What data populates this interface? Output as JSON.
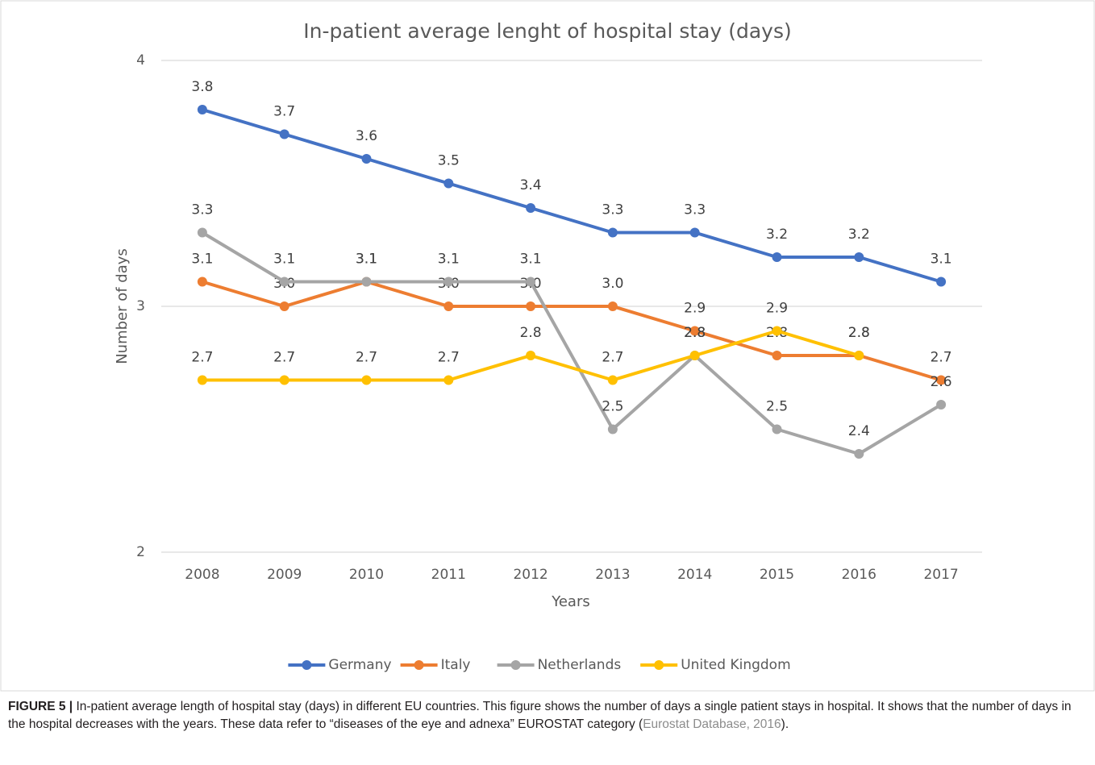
{
  "chart_data": {
    "type": "line",
    "title": "In-patient average lenght of hospital stay (days)",
    "x_label": "Years",
    "y_label": "Number of days",
    "categories": [
      "2008",
      "2009",
      "2010",
      "2011",
      "2012",
      "2013",
      "2014",
      "2015",
      "2016",
      "2017"
    ],
    "ylim": [
      2,
      4
    ],
    "yticks": [
      2,
      3,
      4
    ],
    "grid": true,
    "legend": "bottom",
    "series": [
      {
        "name": "Germany",
        "color": "#4472c4",
        "values": [
          3.8,
          3.7,
          3.6,
          3.5,
          3.4,
          3.3,
          3.3,
          3.2,
          3.2,
          3.1
        ],
        "value_labels": [
          "3.8",
          "3.7",
          "3.6",
          "3.5",
          "3.4",
          "3.3",
          "3.3",
          "3.2",
          "3.2",
          "3.1"
        ]
      },
      {
        "name": "Italy",
        "color": "#ed7d31",
        "values": [
          3.1,
          3.0,
          3.1,
          3.0,
          3.0,
          3.0,
          2.9,
          2.8,
          2.8,
          2.7
        ],
        "value_labels": [
          "3.1",
          "3.0",
          "3.1",
          "3.0",
          "3.0",
          "3.0",
          "2.9",
          "2.8",
          "2.8",
          "2.7"
        ]
      },
      {
        "name": "Netherlands",
        "color": "#a5a5a5",
        "values": [
          3.3,
          3.1,
          3.1,
          3.1,
          3.1,
          2.5,
          2.8,
          2.5,
          2.4,
          2.6
        ],
        "value_labels": [
          "3.3",
          "3.1",
          "3.1",
          "3.1",
          "3.1",
          "2.5",
          "2.8",
          "2.5",
          "2.4",
          "2.6"
        ]
      },
      {
        "name": "United Kingdom",
        "color": "#ffc000",
        "values": [
          2.7,
          2.7,
          2.7,
          2.7,
          2.8,
          2.7,
          2.8,
          2.9,
          2.8,
          null
        ],
        "value_labels": [
          "2.7",
          "2.7",
          "2.7",
          "2.7",
          "2.8",
          "2.7",
          "2.8",
          "2.9",
          "2.8",
          null
        ]
      }
    ]
  },
  "caption": {
    "label": "FIGURE 5 |",
    "text_before": " In-patient average length of hospital stay (days) in different EU countries. This figure shows the number of days a single patient stays in hospital. It shows that the number of days in the hospital decreases with the years. These data refer to “diseases of the eye and adnexa” EUROSTAT category (",
    "link": "Eurostat Database, 2016",
    "text_after": ")."
  }
}
